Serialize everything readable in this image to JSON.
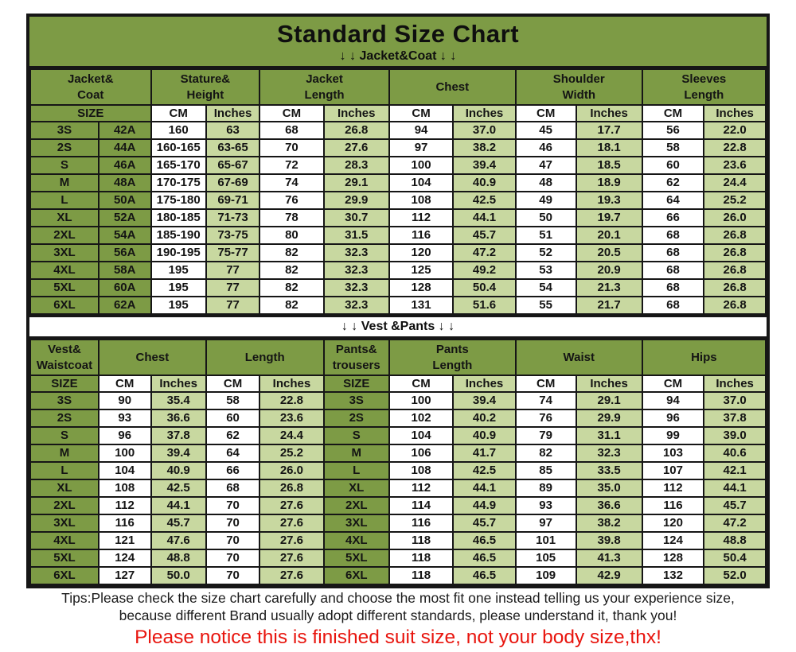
{
  "title": "Standard Size Chart",
  "sections": {
    "jacket_label": "↓ ↓  Jacket&Coat ↓ ↓",
    "vest_label": "↓ ↓  Vest &Pants ↓ ↓"
  },
  "colors": {
    "olive_green": "#7d9b45",
    "light_green": "#c8d8a0",
    "white": "#ffffff",
    "border_black": "#161616",
    "notice_red": "#e8150e"
  },
  "jacket_table": {
    "groups": [
      {
        "lines": [
          "Jacket&",
          "Coat"
        ],
        "span": 2
      },
      {
        "lines": [
          "Stature&",
          "Height"
        ],
        "span": 2
      },
      {
        "lines": [
          "Jacket",
          "Length"
        ],
        "span": 2
      },
      {
        "lines": [
          "Chest"
        ],
        "span": 2
      },
      {
        "lines": [
          "Shoulder",
          "Width"
        ],
        "span": 2
      },
      {
        "lines": [
          "Sleeves",
          "Length"
        ],
        "span": 2
      }
    ],
    "subheader": [
      {
        "label": "SIZE",
        "span": 2
      },
      {
        "label": "CM",
        "span": 1
      },
      {
        "label": "Inches",
        "span": 1
      },
      {
        "label": "CM",
        "span": 1
      },
      {
        "label": "Inches",
        "span": 1
      },
      {
        "label": "CM",
        "span": 1
      },
      {
        "label": "Inches",
        "span": 1
      },
      {
        "label": "CM",
        "span": 1
      },
      {
        "label": "Inches",
        "span": 1
      },
      {
        "label": "CM",
        "span": 1
      },
      {
        "label": "Inches",
        "span": 1
      }
    ],
    "rows": [
      [
        "3S",
        "42A",
        "160",
        "63",
        "68",
        "26.8",
        "94",
        "37.0",
        "45",
        "17.7",
        "56",
        "22.0"
      ],
      [
        "2S",
        "44A",
        "160-165",
        "63-65",
        "70",
        "27.6",
        "97",
        "38.2",
        "46",
        "18.1",
        "58",
        "22.8"
      ],
      [
        "S",
        "46A",
        "165-170",
        "65-67",
        "72",
        "28.3",
        "100",
        "39.4",
        "47",
        "18.5",
        "60",
        "23.6"
      ],
      [
        "M",
        "48A",
        "170-175",
        "67-69",
        "74",
        "29.1",
        "104",
        "40.9",
        "48",
        "18.9",
        "62",
        "24.4"
      ],
      [
        "L",
        "50A",
        "175-180",
        "69-71",
        "76",
        "29.9",
        "108",
        "42.5",
        "49",
        "19.3",
        "64",
        "25.2"
      ],
      [
        "XL",
        "52A",
        "180-185",
        "71-73",
        "78",
        "30.7",
        "112",
        "44.1",
        "50",
        "19.7",
        "66",
        "26.0"
      ],
      [
        "2XL",
        "54A",
        "185-190",
        "73-75",
        "80",
        "31.5",
        "116",
        "45.7",
        "51",
        "20.1",
        "68",
        "26.8"
      ],
      [
        "3XL",
        "56A",
        "190-195",
        "75-77",
        "82",
        "32.3",
        "120",
        "47.2",
        "52",
        "20.5",
        "68",
        "26.8"
      ],
      [
        "4XL",
        "58A",
        "195",
        "77",
        "82",
        "32.3",
        "125",
        "49.2",
        "53",
        "20.9",
        "68",
        "26.8"
      ],
      [
        "5XL",
        "60A",
        "195",
        "77",
        "82",
        "32.3",
        "128",
        "50.4",
        "54",
        "21.3",
        "68",
        "26.8"
      ],
      [
        "6XL",
        "62A",
        "195",
        "77",
        "82",
        "32.3",
        "131",
        "51.6",
        "55",
        "21.7",
        "68",
        "26.8"
      ]
    ]
  },
  "vest_table": {
    "groups": [
      {
        "lines": [
          "Vest&",
          "Waistcoat"
        ],
        "span": 1
      },
      {
        "lines": [
          "Chest"
        ],
        "span": 2
      },
      {
        "lines": [
          "Length"
        ],
        "span": 2
      },
      {
        "lines": [
          "Pants&",
          "trousers"
        ],
        "span": 1
      },
      {
        "lines": [
          "Pants",
          "Length"
        ],
        "span": 2
      },
      {
        "lines": [
          "Waist"
        ],
        "span": 2
      },
      {
        "lines": [
          "Hips"
        ],
        "span": 2
      }
    ],
    "subheader": [
      {
        "label": "SIZE",
        "span": 1
      },
      {
        "label": "CM",
        "span": 1
      },
      {
        "label": "Inches",
        "span": 1
      },
      {
        "label": "CM",
        "span": 1
      },
      {
        "label": "Inches",
        "span": 1
      },
      {
        "label": "SIZE",
        "span": 1
      },
      {
        "label": "CM",
        "span": 1
      },
      {
        "label": "Inches",
        "span": 1
      },
      {
        "label": "CM",
        "span": 1
      },
      {
        "label": "Inches",
        "span": 1
      },
      {
        "label": "CM",
        "span": 1
      },
      {
        "label": "Inches",
        "span": 1
      }
    ],
    "rows": [
      [
        "3S",
        "90",
        "35.4",
        "58",
        "22.8",
        "3S",
        "100",
        "39.4",
        "74",
        "29.1",
        "94",
        "37.0"
      ],
      [
        "2S",
        "93",
        "36.6",
        "60",
        "23.6",
        "2S",
        "102",
        "40.2",
        "76",
        "29.9",
        "96",
        "37.8"
      ],
      [
        "S",
        "96",
        "37.8",
        "62",
        "24.4",
        "S",
        "104",
        "40.9",
        "79",
        "31.1",
        "99",
        "39.0"
      ],
      [
        "M",
        "100",
        "39.4",
        "64",
        "25.2",
        "M",
        "106",
        "41.7",
        "82",
        "32.3",
        "103",
        "40.6"
      ],
      [
        "L",
        "104",
        "40.9",
        "66",
        "26.0",
        "L",
        "108",
        "42.5",
        "85",
        "33.5",
        "107",
        "42.1"
      ],
      [
        "XL",
        "108",
        "42.5",
        "68",
        "26.8",
        "XL",
        "112",
        "44.1",
        "89",
        "35.0",
        "112",
        "44.1"
      ],
      [
        "2XL",
        "112",
        "44.1",
        "70",
        "27.6",
        "2XL",
        "114",
        "44.9",
        "93",
        "36.6",
        "116",
        "45.7"
      ],
      [
        "3XL",
        "116",
        "45.7",
        "70",
        "27.6",
        "3XL",
        "116",
        "45.7",
        "97",
        "38.2",
        "120",
        "47.2"
      ],
      [
        "4XL",
        "121",
        "47.6",
        "70",
        "27.6",
        "4XL",
        "118",
        "46.5",
        "101",
        "39.8",
        "124",
        "48.8"
      ],
      [
        "5XL",
        "124",
        "48.8",
        "70",
        "27.6",
        "5XL",
        "118",
        "46.5",
        "105",
        "41.3",
        "128",
        "50.4"
      ],
      [
        "6XL",
        "127",
        "50.0",
        "70",
        "27.6",
        "6XL",
        "118",
        "46.5",
        "109",
        "42.9",
        "132",
        "52.0"
      ]
    ]
  },
  "footer": {
    "tips_line1": "Tips:Please check the size chart carefully and choose the most fit one instead telling us your experience size,",
    "tips_line2": "because different Brand usually adopt different standards, please understand it, thank you!",
    "notice": "Please notice this is finished suit size, not your body size,thx!"
  }
}
